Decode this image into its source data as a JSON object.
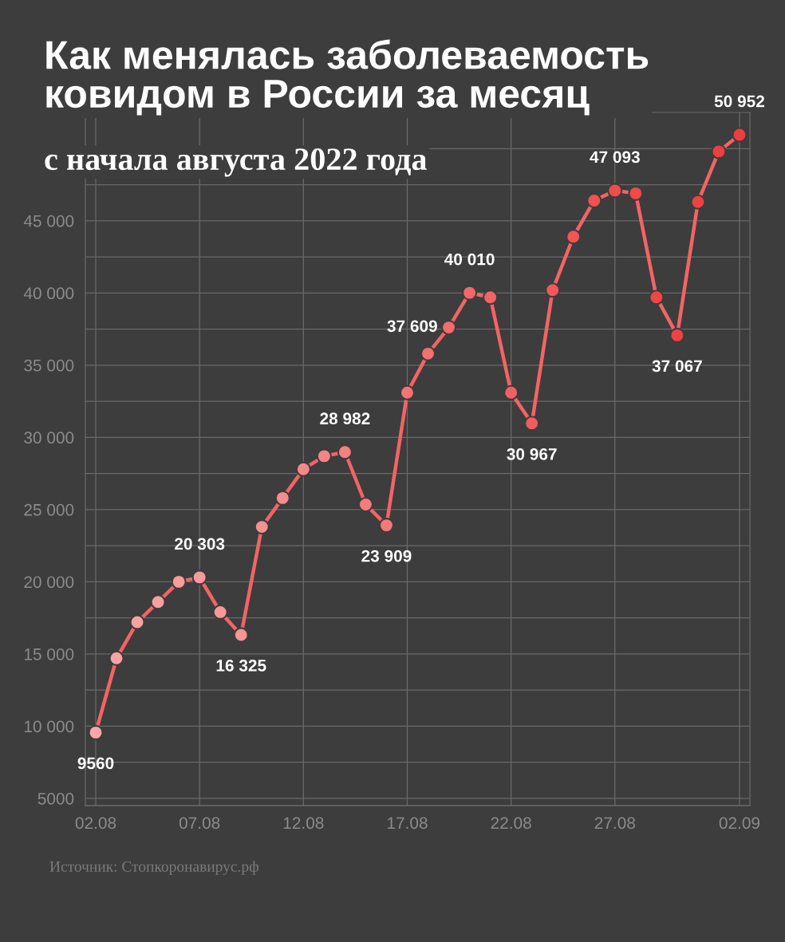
{
  "chart_data": {
    "type": "line",
    "title": "Как менялась заболеваемость\nковидом в России за месяц",
    "subtitle": "с начала августа 2022 года",
    "annotations": [
      "Источник: Стопкоронавирус.рф"
    ],
    "x": [
      "2022-08-02",
      "2022-08-03",
      "2022-08-04",
      "2022-08-05",
      "2022-08-06",
      "2022-08-07",
      "2022-08-08",
      "2022-08-09",
      "2022-08-10",
      "2022-08-11",
      "2022-08-12",
      "2022-08-13",
      "2022-08-14",
      "2022-08-15",
      "2022-08-16",
      "2022-08-17",
      "2022-08-18",
      "2022-08-19",
      "2022-08-20",
      "2022-08-21",
      "2022-08-22",
      "2022-08-23",
      "2022-08-24",
      "2022-08-25",
      "2022-08-26",
      "2022-08-27",
      "2022-08-28",
      "2022-08-29",
      "2022-08-30",
      "2022-08-31",
      "2022-09-01",
      "2022-09-02"
    ],
    "series": [
      {
        "color": "#f46464",
        "values": [
          9560,
          14700,
          17200,
          18600,
          20000,
          20303,
          17900,
          16325,
          23800,
          25800,
          27800,
          28700,
          28982,
          25350,
          23909,
          33100,
          35800,
          37609,
          40010,
          39700,
          33100,
          30967,
          40200,
          43900,
          46400,
          47093,
          46900,
          39700,
          37067,
          46300,
          49800,
          50952
        ],
        "colors": [
          "#f8a8a8",
          "#f8a4a4",
          "#f8a2a2",
          "#f8a0a0",
          "#f89c9c",
          "#f89a9a",
          "#f89898",
          "#f89494",
          "#f79090",
          "#f78c8c",
          "#f78888",
          "#f78484",
          "#f78080",
          "#f67c7c",
          "#f67878",
          "#f67474",
          "#f57070",
          "#f56c6c",
          "#f56868",
          "#f46464",
          "#f46060",
          "#f45c5c",
          "#f35858",
          "#f35454",
          "#f35050",
          "#f24c4c",
          "#f24848",
          "#f24444",
          "#f14242",
          "#f14040",
          "#f03e3e",
          "#f03c3c"
        ],
        "value_labels": [
          "9560",
          null,
          null,
          null,
          null,
          "20 303",
          null,
          "16 325",
          null,
          null,
          null,
          null,
          "28 982",
          null,
          "23 909",
          null,
          null,
          "37 609",
          "40 010",
          null,
          null,
          "30 967",
          null,
          null,
          null,
          "47 093",
          null,
          null,
          "37 067",
          null,
          null,
          "50 952"
        ]
      }
    ],
    "xlim": [
      "2022-08-01T12:00",
      "2022-09-02T12:00"
    ],
    "xticks": [
      {
        "value": "2022-08-02",
        "label": "02.08"
      },
      {
        "value": "2022-08-07",
        "label": "07.08"
      },
      {
        "value": "2022-08-12",
        "label": "12.08"
      },
      {
        "value": "2022-08-17",
        "label": "17.08"
      },
      {
        "value": "2022-08-22",
        "label": "22.08"
      },
      {
        "value": "2022-08-27",
        "label": "27.08"
      },
      {
        "value": "2022-09-02",
        "label": "02.09"
      }
    ],
    "ylim": [
      4500,
      52500
    ],
    "yticks": [
      {
        "value": 5000,
        "label": "5000"
      },
      {
        "value": 7500,
        "label": null
      },
      {
        "value": 10000,
        "label": "10 000"
      },
      {
        "value": 12500,
        "label": null
      },
      {
        "value": 15000,
        "label": "15 000"
      },
      {
        "value": 17500,
        "label": null
      },
      {
        "value": 20000,
        "label": "20 000"
      },
      {
        "value": 22500,
        "label": null
      },
      {
        "value": 25000,
        "label": "25 000"
      },
      {
        "value": 27500,
        "label": null
      },
      {
        "value": 30000,
        "label": "30 000"
      },
      {
        "value": 32500,
        "label": null
      },
      {
        "value": 35000,
        "label": "35 000"
      },
      {
        "value": 37500,
        "label": null
      },
      {
        "value": 40000,
        "label": "40 000"
      },
      {
        "value": 42500,
        "label": null
      },
      {
        "value": 45000,
        "label": "45 000"
      },
      {
        "value": 47500,
        "label": null
      },
      {
        "value": 50000,
        "label": null
      }
    ],
    "grid": true,
    "legend": false,
    "marker": "circle",
    "line_style": "solid"
  }
}
